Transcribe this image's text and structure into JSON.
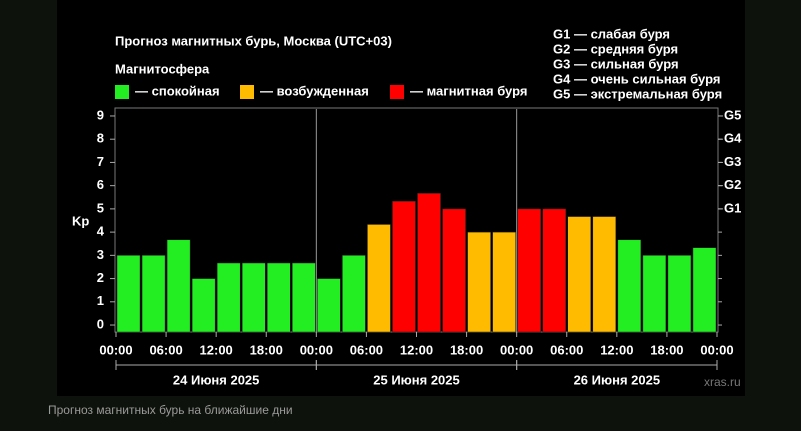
{
  "chart_data": {
    "type": "bar",
    "title": "Прогноз магнитных бурь, Москва (UTC+03)",
    "legend_title": "Магнитосфера",
    "legend": [
      {
        "label": "— спокойная",
        "color": "#22ee22"
      },
      {
        "label": "— возбужденная",
        "color": "#ffbb00"
      },
      {
        "label": "— магнитная буря",
        "color": "#ff0000"
      }
    ],
    "storm_levels": [
      "G1 — слабая буря",
      "G2 — средняя буря",
      "G3 — сильная буря",
      "G4 — очень сильная буря",
      "G5 — экстремальная буря"
    ],
    "ylabel": "Kp",
    "x": [
      0,
      3,
      6,
      9,
      12,
      15,
      18,
      21,
      24,
      27,
      30,
      33,
      36,
      39,
      42,
      45,
      48,
      51,
      54,
      57,
      60,
      63,
      66,
      69
    ],
    "values": [
      3,
      3,
      3.67,
      2,
      2.67,
      2.67,
      2.67,
      2.67,
      2,
      3,
      4.33,
      5.33,
      5.67,
      5,
      4,
      4,
      5,
      5,
      4.67,
      4.67,
      3.67,
      3,
      3,
      3.33
    ],
    "colors": [
      "#22ee22",
      "#22ee22",
      "#22ee22",
      "#22ee22",
      "#22ee22",
      "#22ee22",
      "#22ee22",
      "#22ee22",
      "#22ee22",
      "#22ee22",
      "#ffbb00",
      "#ff0000",
      "#ff0000",
      "#ff0000",
      "#ffbb00",
      "#ffbb00",
      "#ff0000",
      "#ff0000",
      "#ffbb00",
      "#ffbb00",
      "#22ee22",
      "#22ee22",
      "#22ee22",
      "#22ee22"
    ],
    "xlim": [
      0,
      72
    ],
    "xticks": [
      {
        "value": 0,
        "label": "00:00"
      },
      {
        "value": 6,
        "label": "06:00"
      },
      {
        "value": 12,
        "label": "12:00"
      },
      {
        "value": 18,
        "label": "18:00"
      },
      {
        "value": 24,
        "label": "00:00"
      },
      {
        "value": 30,
        "label": "06:00"
      },
      {
        "value": 36,
        "label": "12:00"
      },
      {
        "value": 42,
        "label": "18:00"
      },
      {
        "value": 48,
        "label": "00:00"
      },
      {
        "value": 54,
        "label": "06:00"
      },
      {
        "value": 60,
        "label": "12:00"
      },
      {
        "value": 66,
        "label": "18:00"
      },
      {
        "value": 72,
        "label": "00:00"
      }
    ],
    "days": [
      "24 Июня 2025",
      "25 Июня 2025",
      "26 Июня 2025"
    ],
    "ylim": [
      -0.3,
      9.3
    ],
    "yticks": [
      0,
      1,
      2,
      3,
      4,
      5,
      6,
      7,
      8,
      9
    ],
    "y2lim": [
      -0.3,
      9.3
    ],
    "y2ticks": [
      {
        "value": 5,
        "label": "G1"
      },
      {
        "value": 6,
        "label": "G2"
      },
      {
        "value": 7,
        "label": "G3"
      },
      {
        "value": 8,
        "label": "G4"
      },
      {
        "value": 9,
        "label": "G5"
      }
    ],
    "watermark": "xras.ru",
    "caption": "Прогноз магнитных бурь на ближайшие дни"
  }
}
